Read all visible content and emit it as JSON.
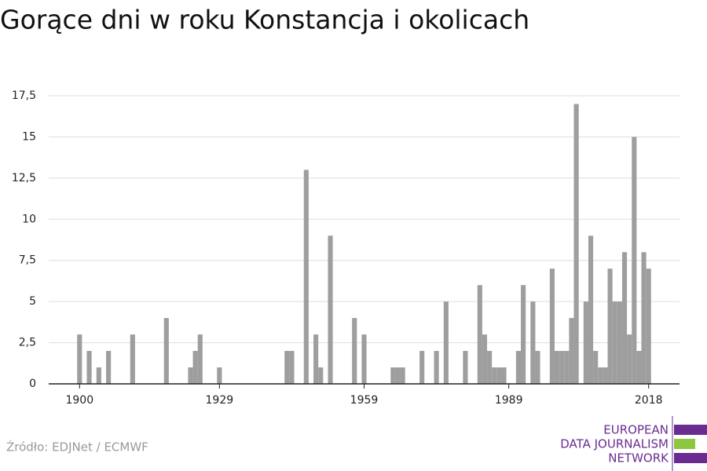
{
  "chart_data": {
    "type": "bar",
    "title": "Gorące dni w roku Konstancja i okolicach",
    "source": "Źródło: EDJNet / ECMWF",
    "logo": [
      "EUROPEAN",
      "DATA JOURNALISM",
      "NETWORK"
    ],
    "color": "#9e9e9e",
    "x": [
      1900,
      1902,
      1904,
      1906,
      1911,
      1918,
      1923,
      1924,
      1925,
      1929,
      1943,
      1944,
      1947,
      1949,
      1950,
      1952,
      1957,
      1959,
      1965,
      1966,
      1967,
      1971,
      1974,
      1976,
      1980,
      1983,
      1984,
      1985,
      1986,
      1987,
      1988,
      1991,
      1992,
      1994,
      1995,
      1998,
      1999,
      2000,
      2001,
      2002,
      2003,
      2005,
      2006,
      2007,
      2008,
      2009,
      2010,
      2011,
      2012,
      2013,
      2014,
      2015,
      2016,
      2017,
      2018
    ],
    "values": [
      3,
      2,
      1,
      2,
      3,
      4,
      1,
      2,
      3,
      1,
      2,
      2,
      13,
      3,
      1,
      9,
      4,
      3,
      1,
      1,
      1,
      2,
      2,
      5,
      2,
      6,
      3,
      2,
      1,
      1,
      1,
      2,
      6,
      5,
      2,
      7,
      2,
      2,
      2,
      4,
      17,
      5,
      9,
      2,
      1,
      1,
      7,
      5,
      5,
      8,
      3,
      15,
      2,
      8,
      7
    ],
    "xlim": [
      1893.6,
      2024.4
    ],
    "xticks": [
      1900,
      1929,
      1959,
      1989,
      2018
    ],
    "ylim": [
      0,
      17.5
    ],
    "yticks": [
      0,
      {
        "value": 2.5,
        "label": "2,5"
      },
      5,
      {
        "value": 7.5,
        "label": "7,5"
      },
      10,
      {
        "value": 12.5,
        "label": "12,5"
      },
      15,
      {
        "value": 17.5,
        "label": "17,5"
      }
    ],
    "grid": true
  }
}
